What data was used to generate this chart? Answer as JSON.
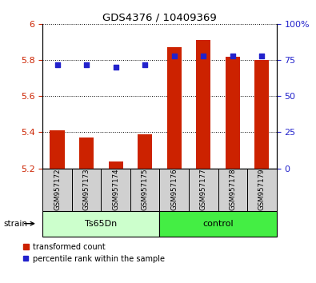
{
  "title": "GDS4376 / 10409369",
  "samples": [
    "GSM957172",
    "GSM957173",
    "GSM957174",
    "GSM957175",
    "GSM957176",
    "GSM957177",
    "GSM957178",
    "GSM957179"
  ],
  "bar_values": [
    5.41,
    5.37,
    5.24,
    5.39,
    5.87,
    5.91,
    5.82,
    5.8
  ],
  "bar_base": 5.2,
  "percentile_values": [
    72,
    72,
    70,
    72,
    78,
    78,
    78,
    78
  ],
  "ylim_left": [
    5.2,
    6.0
  ],
  "ylim_right": [
    0,
    100
  ],
  "yticks_left": [
    5.2,
    5.4,
    5.6,
    5.8,
    6.0
  ],
  "ytick_labels_left": [
    "5.2",
    "5.4",
    "5.6",
    "5.8",
    "6"
  ],
  "yticks_right": [
    0,
    25,
    50,
    75,
    100
  ],
  "ytick_labels_right": [
    "0",
    "25",
    "50",
    "75",
    "100%"
  ],
  "bar_color": "#cc2200",
  "dot_color": "#2222cc",
  "groups": [
    {
      "label": "Ts65Dn",
      "indices": [
        0,
        1,
        2,
        3
      ],
      "color": "#ccffcc"
    },
    {
      "label": "control",
      "indices": [
        4,
        5,
        6,
        7
      ],
      "color": "#44ee44"
    }
  ],
  "strain_label": "strain",
  "legend_bar_label": "transformed count",
  "legend_dot_label": "percentile rank within the sample",
  "tick_label_color_left": "#cc2200",
  "tick_label_color_right": "#2222cc",
  "sample_box_color": "#d0d0d0",
  "bar_width": 0.5
}
